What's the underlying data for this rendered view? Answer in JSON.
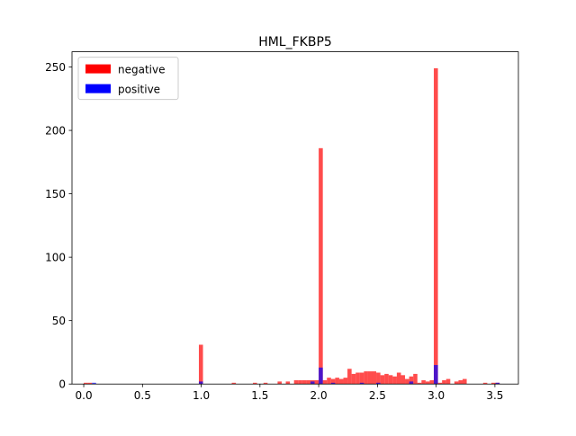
{
  "chart_data": {
    "type": "bar",
    "title": "HML_FKBP5",
    "xlabel": "",
    "ylabel": "",
    "xlim": [
      -0.1,
      3.7
    ],
    "ylim": [
      0,
      262
    ],
    "bin_width": 0.035,
    "x_ticks": [
      "0.0",
      "0.5",
      "1.0",
      "1.5",
      "2.0",
      "2.5",
      "3.0",
      "3.5"
    ],
    "y_ticks": [
      "0",
      "50",
      "100",
      "150",
      "200",
      "250"
    ],
    "grid": false,
    "legend_position": "top-left",
    "series": [
      {
        "name": "negative",
        "color": "#ff0000",
        "alpha": 0.7,
        "points": [
          {
            "x": 0.0,
            "y": 1
          },
          {
            "x": 0.035,
            "y": 1
          },
          {
            "x": 0.98,
            "y": 31
          },
          {
            "x": 1.26,
            "y": 1
          },
          {
            "x": 1.44,
            "y": 1
          },
          {
            "x": 1.53,
            "y": 1
          },
          {
            "x": 1.65,
            "y": 2
          },
          {
            "x": 1.72,
            "y": 2
          },
          {
            "x": 1.79,
            "y": 3
          },
          {
            "x": 1.825,
            "y": 3
          },
          {
            "x": 1.86,
            "y": 3
          },
          {
            "x": 1.895,
            "y": 3
          },
          {
            "x": 1.93,
            "y": 3
          },
          {
            "x": 1.965,
            "y": 3
          },
          {
            "x": 2.0,
            "y": 186
          },
          {
            "x": 2.035,
            "y": 3
          },
          {
            "x": 2.07,
            "y": 5
          },
          {
            "x": 2.105,
            "y": 4
          },
          {
            "x": 2.14,
            "y": 5
          },
          {
            "x": 2.175,
            "y": 4
          },
          {
            "x": 2.21,
            "y": 5
          },
          {
            "x": 2.245,
            "y": 12
          },
          {
            "x": 2.28,
            "y": 8
          },
          {
            "x": 2.315,
            "y": 9
          },
          {
            "x": 2.35,
            "y": 9
          },
          {
            "x": 2.385,
            "y": 10
          },
          {
            "x": 2.42,
            "y": 10
          },
          {
            "x": 2.455,
            "y": 10
          },
          {
            "x": 2.49,
            "y": 9
          },
          {
            "x": 2.525,
            "y": 7
          },
          {
            "x": 2.56,
            "y": 8
          },
          {
            "x": 2.595,
            "y": 7
          },
          {
            "x": 2.63,
            "y": 6
          },
          {
            "x": 2.665,
            "y": 9
          },
          {
            "x": 2.7,
            "y": 7
          },
          {
            "x": 2.735,
            "y": 4
          },
          {
            "x": 2.77,
            "y": 6
          },
          {
            "x": 2.805,
            "y": 8
          },
          {
            "x": 2.84,
            "y": 1
          },
          {
            "x": 2.875,
            "y": 3
          },
          {
            "x": 2.91,
            "y": 2
          },
          {
            "x": 2.945,
            "y": 3
          },
          {
            "x": 2.98,
            "y": 249
          },
          {
            "x": 3.015,
            "y": 1
          },
          {
            "x": 3.05,
            "y": 3
          },
          {
            "x": 3.085,
            "y": 4
          },
          {
            "x": 3.155,
            "y": 2
          },
          {
            "x": 3.19,
            "y": 3
          },
          {
            "x": 3.225,
            "y": 4
          },
          {
            "x": 3.4,
            "y": 1
          },
          {
            "x": 3.47,
            "y": 1
          },
          {
            "x": 3.505,
            "y": 1
          }
        ]
      },
      {
        "name": "positive",
        "color": "#0000ff",
        "alpha": 0.7,
        "points": [
          {
            "x": 0.07,
            "y": 1
          },
          {
            "x": 0.98,
            "y": 2
          },
          {
            "x": 1.93,
            "y": 2
          },
          {
            "x": 2.0,
            "y": 13
          },
          {
            "x": 2.105,
            "y": 1
          },
          {
            "x": 2.35,
            "y": 1
          },
          {
            "x": 2.49,
            "y": 1
          },
          {
            "x": 2.77,
            "y": 2
          },
          {
            "x": 2.98,
            "y": 15
          },
          {
            "x": 3.505,
            "y": 1
          }
        ]
      }
    ]
  }
}
